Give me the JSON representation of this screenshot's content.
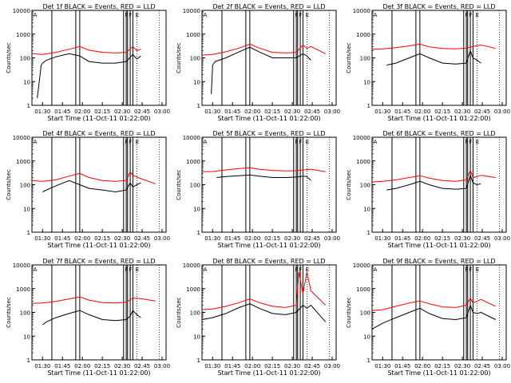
{
  "figure": {
    "xlabel": "Start Time (11-Oct-11 01:22:00)",
    "ylabel": "Counts/sec",
    "x_tick_labels": [
      "01:30",
      "01:45",
      "02:00",
      "02:15",
      "02:30",
      "02:45",
      "03:00"
    ],
    "y_tick_labels": [
      "1",
      "10",
      "100",
      "1000",
      "10000"
    ],
    "flag_labels": [
      "A",
      "F",
      "F",
      "E"
    ]
  },
  "colors": {
    "events": "#000000",
    "lld": "#ff0000"
  },
  "chart_data": [
    {
      "type": "line",
      "title": "Det 1f BLACK = Events, RED = LLD",
      "xlabel": "Start Time (11-Oct-11 01:22:00)",
      "ylabel": "Counts/sec",
      "y_scale": "log",
      "ylim": [
        1,
        10000
      ],
      "x_time_labels": [
        "01:30",
        "01:45",
        "02:00",
        "02:15",
        "02:30",
        "02:45",
        "03:00"
      ],
      "series": [
        {
          "name": "Events",
          "color": "black",
          "x": [
            "01:26",
            "01:29",
            "01:30",
            "01:33",
            "01:40",
            "01:50",
            "01:58",
            "02:05",
            "02:15",
            "02:25",
            "02:33",
            "02:38",
            "02:41",
            "02:44"
          ],
          "y": [
            2,
            50,
            60,
            80,
            110,
            150,
            120,
            70,
            60,
            60,
            70,
            140,
            90,
            120
          ]
        },
        {
          "name": "LLD",
          "color": "red",
          "x": [
            "01:22",
            "01:30",
            "01:40",
            "01:50",
            "01:58",
            "02:05",
            "02:15",
            "02:25",
            "02:33",
            "02:38",
            "02:41",
            "02:44"
          ],
          "y": [
            150,
            140,
            170,
            230,
            300,
            210,
            170,
            160,
            170,
            300,
            200,
            230
          ]
        }
      ]
    },
    {
      "type": "line",
      "title": "Det 2f BLACK = Events, RED = LLD",
      "xlabel": "Start Time (11-Oct-11 01:22:00)",
      "ylabel": "Counts/sec",
      "y_scale": "log",
      "ylim": [
        1,
        10000
      ],
      "x_time_labels": [
        "01:30",
        "01:45",
        "02:00",
        "02:15",
        "02:30",
        "02:45",
        "03:00"
      ],
      "series": [
        {
          "name": "Events",
          "color": "black",
          "x": [
            "01:29",
            "01:30",
            "01:32",
            "01:40",
            "01:50",
            "01:58",
            "02:05",
            "02:15",
            "02:25",
            "02:33",
            "02:38",
            "02:41",
            "02:44"
          ],
          "y": [
            3,
            50,
            70,
            100,
            180,
            280,
            180,
            100,
            100,
            100,
            150,
            120,
            80
          ]
        },
        {
          "name": "LLD",
          "color": "red",
          "x": [
            "01:22",
            "01:30",
            "01:40",
            "01:50",
            "01:58",
            "02:05",
            "02:15",
            "02:25",
            "02:33",
            "02:38",
            "02:41",
            "02:44",
            "02:55"
          ],
          "y": [
            130,
            140,
            180,
            260,
            380,
            260,
            170,
            160,
            170,
            350,
            250,
            300,
            150
          ]
        }
      ]
    },
    {
      "type": "line",
      "title": "Det 3f BLACK = Events, RED = LLD",
      "xlabel": "Start Time (11-Oct-11 01:22:00)",
      "ylabel": "Counts/sec",
      "y_scale": "log",
      "ylim": [
        1,
        10000
      ],
      "x_time_labels": [
        "01:30",
        "01:45",
        "02:00",
        "02:15",
        "02:30",
        "02:45",
        "03:00"
      ],
      "series": [
        {
          "name": "Events",
          "color": "black",
          "x": [
            "01:33",
            "01:40",
            "01:50",
            "01:58",
            "02:05",
            "02:15",
            "02:25",
            "02:33",
            "02:36",
            "02:38",
            "02:41",
            "02:44"
          ],
          "y": [
            50,
            60,
            100,
            150,
            100,
            60,
            55,
            60,
            200,
            100,
            80,
            60
          ]
        },
        {
          "name": "LLD",
          "color": "red",
          "x": [
            "01:22",
            "01:30",
            "01:40",
            "01:50",
            "01:58",
            "02:05",
            "02:15",
            "02:25",
            "02:33",
            "02:38",
            "02:44",
            "02:55"
          ],
          "y": [
            230,
            240,
            270,
            320,
            380,
            290,
            250,
            240,
            260,
            300,
            350,
            250
          ]
        }
      ]
    },
    {
      "type": "line",
      "title": "Det 4f BLACK = Events, RED = LLD",
      "xlabel": "Start Time (11-Oct-11 01:22:00)",
      "ylabel": "Counts/sec",
      "y_scale": "log",
      "ylim": [
        1,
        10000
      ],
      "x_time_labels": [
        "01:30",
        "01:45",
        "02:00",
        "02:15",
        "02:30",
        "02:45",
        "03:00"
      ],
      "series": [
        {
          "name": "Events",
          "color": "black",
          "x": [
            "01:30",
            "01:33",
            "01:40",
            "01:50",
            "01:58",
            "02:05",
            "02:15",
            "02:25",
            "02:33",
            "02:36",
            "02:38",
            "02:41",
            "02:44"
          ],
          "y": [
            50,
            60,
            90,
            150,
            100,
            70,
            60,
            50,
            60,
            120,
            80,
            100,
            120
          ]
        },
        {
          "name": "LLD",
          "color": "red",
          "x": [
            "01:22",
            "01:30",
            "01:40",
            "01:50",
            "01:58",
            "02:05",
            "02:15",
            "02:25",
            "02:33",
            "02:36",
            "02:38",
            "02:44",
            "02:55"
          ],
          "y": [
            150,
            140,
            160,
            230,
            300,
            200,
            150,
            140,
            150,
            350,
            250,
            180,
            110
          ]
        }
      ]
    },
    {
      "type": "line",
      "title": "Det 5f BLACK = Events, RED = LLD",
      "xlabel": "Start Time (11-Oct-11 01:22:00)",
      "ylabel": "Counts/sec",
      "y_scale": "log",
      "ylim": [
        1,
        10000
      ],
      "x_time_labels": [
        "01:30",
        "01:45",
        "02:00",
        "02:15",
        "02:30",
        "02:45",
        "03:00"
      ],
      "series": [
        {
          "name": "Events",
          "color": "black",
          "x": [
            "01:33",
            "01:40",
            "01:50",
            "01:58",
            "02:05",
            "02:15",
            "02:25",
            "02:33",
            "02:38",
            "02:41",
            "02:44"
          ],
          "y": [
            200,
            220,
            240,
            260,
            230,
            200,
            200,
            210,
            230,
            220,
            150
          ]
        },
        {
          "name": "LLD",
          "color": "red",
          "x": [
            "01:22",
            "01:30",
            "01:40",
            "01:50",
            "01:58",
            "02:05",
            "02:15",
            "02:25",
            "02:33",
            "02:38",
            "02:44",
            "02:55"
          ],
          "y": [
            350,
            360,
            420,
            480,
            520,
            450,
            400,
            380,
            390,
            420,
            450,
            350
          ]
        }
      ]
    },
    {
      "type": "line",
      "title": "Det 6f BLACK = Events, RED = LLD",
      "xlabel": "Start Time (11-Oct-11 01:22:00)",
      "ylabel": "Counts/sec",
      "y_scale": "log",
      "ylim": [
        1,
        10000
      ],
      "x_time_labels": [
        "01:30",
        "01:45",
        "02:00",
        "02:15",
        "02:30",
        "02:45",
        "03:00"
      ],
      "series": [
        {
          "name": "Events",
          "color": "black",
          "x": [
            "01:33",
            "01:40",
            "01:50",
            "01:58",
            "02:05",
            "02:15",
            "02:25",
            "02:33",
            "02:36",
            "02:38",
            "02:41",
            "02:44"
          ],
          "y": [
            60,
            70,
            100,
            140,
            100,
            70,
            65,
            70,
            250,
            120,
            100,
            110
          ]
        },
        {
          "name": "LLD",
          "color": "red",
          "x": [
            "01:22",
            "01:30",
            "01:40",
            "01:50",
            "01:58",
            "02:05",
            "02:15",
            "02:25",
            "02:33",
            "02:36",
            "02:38",
            "02:44",
            "02:55"
          ],
          "y": [
            130,
            140,
            160,
            200,
            240,
            190,
            150,
            140,
            160,
            400,
            200,
            250,
            200
          ]
        }
      ]
    },
    {
      "type": "line",
      "title": "Det 7f BLACK = Events, RED = LLD",
      "xlabel": "Start Time (11-Oct-11 01:22:00)",
      "ylabel": "Counts/sec",
      "y_scale": "log",
      "ylim": [
        1,
        10000
      ],
      "x_time_labels": [
        "01:30",
        "01:45",
        "02:00",
        "02:15",
        "02:30",
        "02:45",
        "03:00"
      ],
      "series": [
        {
          "name": "Events",
          "color": "black",
          "x": [
            "01:30",
            "01:33",
            "01:40",
            "01:50",
            "01:58",
            "02:05",
            "02:15",
            "02:25",
            "02:33",
            "02:36",
            "02:38",
            "02:41",
            "02:44"
          ],
          "y": [
            30,
            40,
            60,
            90,
            120,
            80,
            50,
            45,
            50,
            70,
            120,
            80,
            60
          ]
        },
        {
          "name": "LLD",
          "color": "red",
          "x": [
            "01:22",
            "01:30",
            "01:40",
            "01:50",
            "01:58",
            "02:05",
            "02:15",
            "02:25",
            "02:33",
            "02:38",
            "02:44",
            "02:55"
          ],
          "y": [
            240,
            250,
            290,
            370,
            450,
            330,
            260,
            250,
            270,
            400,
            380,
            300
          ]
        }
      ]
    },
    {
      "type": "line",
      "title": "Det 8f BLACK = Events, RED = LLD",
      "xlabel": "Start Time (11-Oct-11 01:22:00)",
      "ylabel": "Counts/sec",
      "y_scale": "log",
      "ylim": [
        1,
        10000
      ],
      "x_time_labels": [
        "01:30",
        "01:45",
        "02:00",
        "02:15",
        "02:30",
        "02:45",
        "03:00"
      ],
      "series": [
        {
          "name": "Events",
          "color": "black",
          "x": [
            "01:22",
            "01:30",
            "01:40",
            "01:50",
            "01:58",
            "02:05",
            "02:15",
            "02:25",
            "02:33",
            "02:38",
            "02:41",
            "02:44",
            "02:55"
          ],
          "y": [
            50,
            60,
            90,
            160,
            230,
            150,
            90,
            80,
            100,
            200,
            150,
            200,
            40
          ]
        },
        {
          "name": "LLD",
          "color": "red",
          "x": [
            "01:22",
            "01:30",
            "01:40",
            "01:50",
            "01:58",
            "02:05",
            "02:15",
            "02:25",
            "02:33",
            "02:35",
            "02:38",
            "02:41",
            "02:44",
            "02:55"
          ],
          "y": [
            130,
            140,
            180,
            260,
            370,
            260,
            180,
            160,
            200,
            5000,
            600,
            5000,
            800,
            200
          ]
        }
      ]
    },
    {
      "type": "line",
      "title": "Det 9f BLACK = Events, RED = LLD",
      "xlabel": "Start Time (11-Oct-11 01:22:00)",
      "ylabel": "Counts/sec",
      "y_scale": "log",
      "ylim": [
        1,
        10000
      ],
      "x_time_labels": [
        "01:30",
        "01:45",
        "02:00",
        "02:15",
        "02:30",
        "02:45",
        "03:00"
      ],
      "series": [
        {
          "name": "Events",
          "color": "black",
          "x": [
            "01:22",
            "01:30",
            "01:40",
            "01:50",
            "01:58",
            "02:05",
            "02:15",
            "02:25",
            "02:33",
            "02:36",
            "02:38",
            "02:41",
            "02:44",
            "02:55"
          ],
          "y": [
            20,
            35,
            60,
            100,
            150,
            90,
            55,
            50,
            60,
            200,
            100,
            90,
            100,
            50
          ]
        },
        {
          "name": "LLD",
          "color": "red",
          "x": [
            "01:22",
            "01:30",
            "01:40",
            "01:50",
            "01:58",
            "02:05",
            "02:15",
            "02:25",
            "02:33",
            "02:36",
            "02:38",
            "02:44",
            "02:55"
          ],
          "y": [
            120,
            130,
            180,
            250,
            300,
            230,
            170,
            160,
            200,
            400,
            250,
            350,
            180
          ]
        }
      ]
    }
  ]
}
